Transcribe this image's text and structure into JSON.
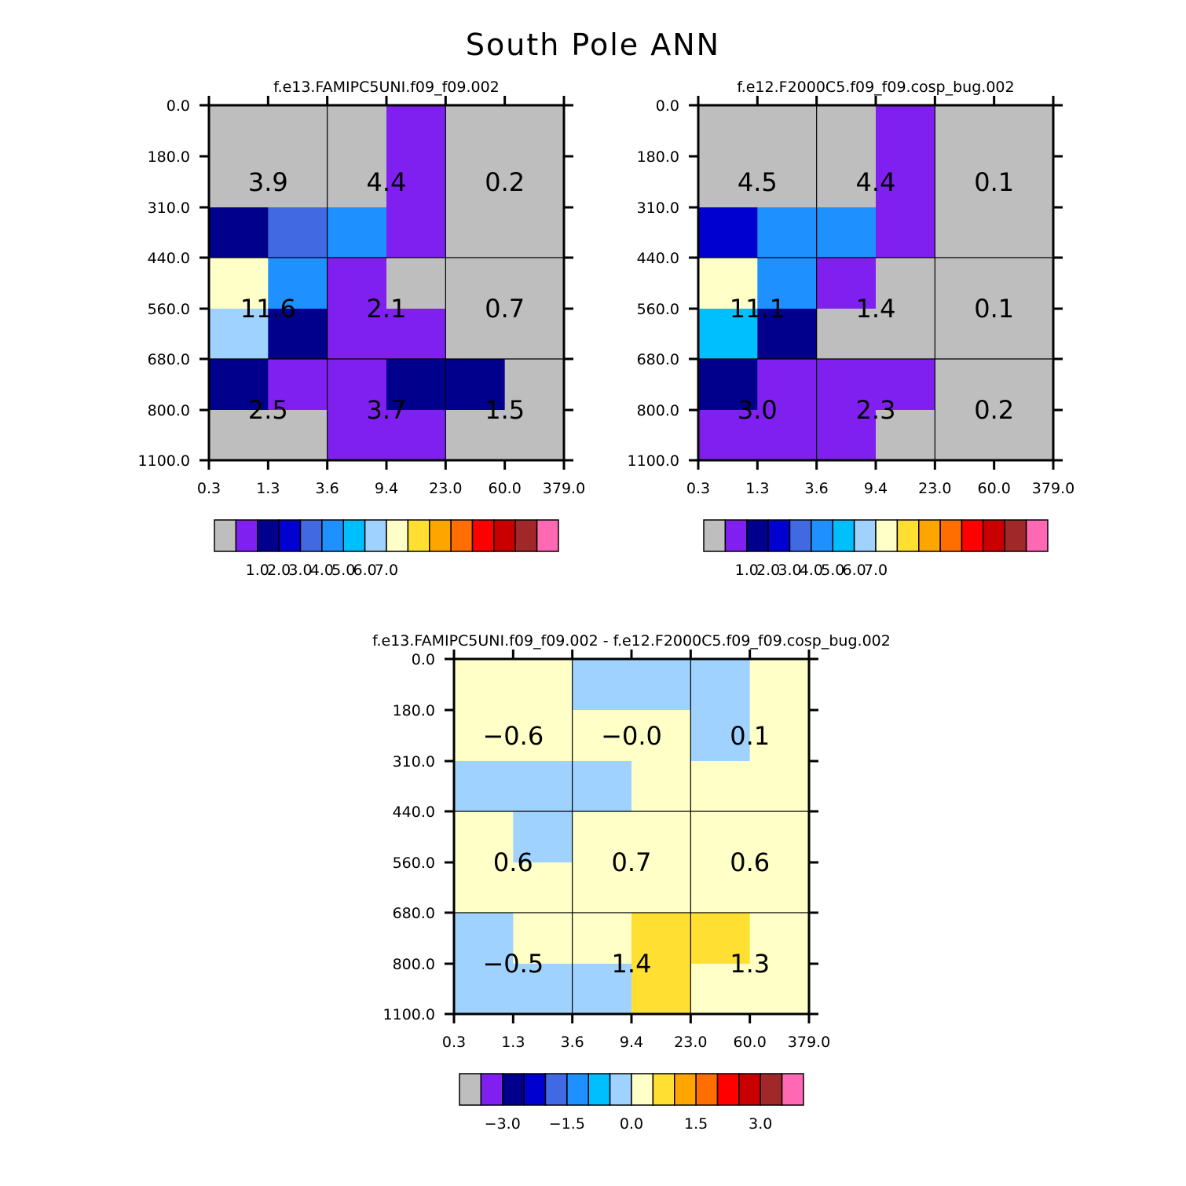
{
  "title": "South Pole ANN",
  "chart_data": [
    {
      "type": "heatmap",
      "title": "f.e13.FAMIPC5UNI.f09_f09.002",
      "x_ticks": [
        "0.3",
        "1.3",
        "3.6",
        "9.4",
        "23.0",
        "60.0",
        "379.0"
      ],
      "y_ticks": [
        "0.0",
        "180.0",
        "310.0",
        "440.0",
        "560.0",
        "680.0",
        "800.0",
        "1100.0"
      ],
      "cell_grid": [
        [
          0,
          0,
          0,
          1,
          0,
          0
        ],
        [
          0,
          0,
          0,
          1,
          0,
          0
        ],
        [
          2,
          4,
          5,
          1,
          0,
          0
        ],
        [
          8,
          5,
          1,
          0,
          0,
          0
        ],
        [
          7,
          2,
          1,
          1,
          0,
          0
        ],
        [
          2,
          1,
          1,
          2,
          2,
          0
        ],
        [
          0,
          0,
          1,
          1,
          0,
          0
        ]
      ],
      "sum_labels": [
        [
          "3.9",
          "4.4",
          "0.2"
        ],
        [
          "11.6",
          "2.1",
          "0.7"
        ],
        [
          "2.5",
          "3.7",
          "1.5"
        ]
      ],
      "colorbar_labels": [
        "1.0",
        "2.0",
        "3.0",
        "4.0",
        "5.0",
        "6.0",
        "7.0"
      ]
    },
    {
      "type": "heatmap",
      "title": "f.e12.F2000C5.f09_f09.cosp_bug.002",
      "x_ticks": [
        "0.3",
        "1.3",
        "3.6",
        "9.4",
        "23.0",
        "60.0",
        "379.0"
      ],
      "y_ticks": [
        "0.0",
        "180.0",
        "310.0",
        "440.0",
        "560.0",
        "680.0",
        "800.0",
        "1100.0"
      ],
      "cell_grid": [
        [
          0,
          0,
          0,
          1,
          0,
          0
        ],
        [
          0,
          0,
          0,
          1,
          0,
          0
        ],
        [
          3,
          5,
          5,
          1,
          0,
          0
        ],
        [
          8,
          5,
          1,
          0,
          0,
          0
        ],
        [
          6,
          2,
          0,
          0,
          0,
          0
        ],
        [
          2,
          1,
          1,
          1,
          0,
          0
        ],
        [
          1,
          1,
          1,
          0,
          0,
          0
        ]
      ],
      "sum_labels": [
        [
          "4.5",
          "4.4",
          "0.1"
        ],
        [
          "11.1",
          "1.4",
          "0.1"
        ],
        [
          "3.0",
          "2.3",
          "0.2"
        ]
      ],
      "colorbar_labels": [
        "1.0",
        "2.0",
        "3.0",
        "4.0",
        "5.0",
        "6.0",
        "7.0"
      ]
    },
    {
      "type": "heatmap",
      "title": "f.e13.FAMIPC5UNI.f09_f09.002 - f.e12.F2000C5.f09_f09.cosp_bug.002",
      "x_ticks": [
        "0.3",
        "1.3",
        "3.6",
        "9.4",
        "23.0",
        "60.0",
        "379.0"
      ],
      "y_ticks": [
        "0.0",
        "180.0",
        "310.0",
        "440.0",
        "560.0",
        "680.0",
        "800.0",
        "1100.0"
      ],
      "cell_grid": [
        [
          8,
          8,
          7,
          7,
          7,
          8
        ],
        [
          8,
          8,
          8,
          8,
          7,
          8
        ],
        [
          7,
          7,
          7,
          8,
          8,
          8
        ],
        [
          8,
          7,
          8,
          8,
          8,
          8
        ],
        [
          8,
          8,
          8,
          8,
          8,
          8
        ],
        [
          7,
          8,
          8,
          9,
          9,
          8
        ],
        [
          7,
          7,
          7,
          9,
          8,
          8
        ]
      ],
      "sum_labels": [
        [
          "−0.6",
          "−0.0",
          "0.1"
        ],
        [
          "0.6",
          "0.7",
          "0.6"
        ],
        [
          "−0.5",
          "1.4",
          "1.3"
        ]
      ],
      "colorbar_labels": [
        "−3.0",
        "−1.5",
        "0.0",
        "1.5",
        "3.0"
      ]
    }
  ],
  "colorbar_colors": [
    "#bebebe",
    "#8020f0",
    "#00008c",
    "#0000d0",
    "#4169e1",
    "#1e90ff",
    "#00bfff",
    "#a0d2ff",
    "#ffffc8",
    "#ffe032",
    "#ffa500",
    "#ff6e00",
    "#ff0000",
    "#c80000",
    "#a02828",
    "#ff69b4"
  ]
}
